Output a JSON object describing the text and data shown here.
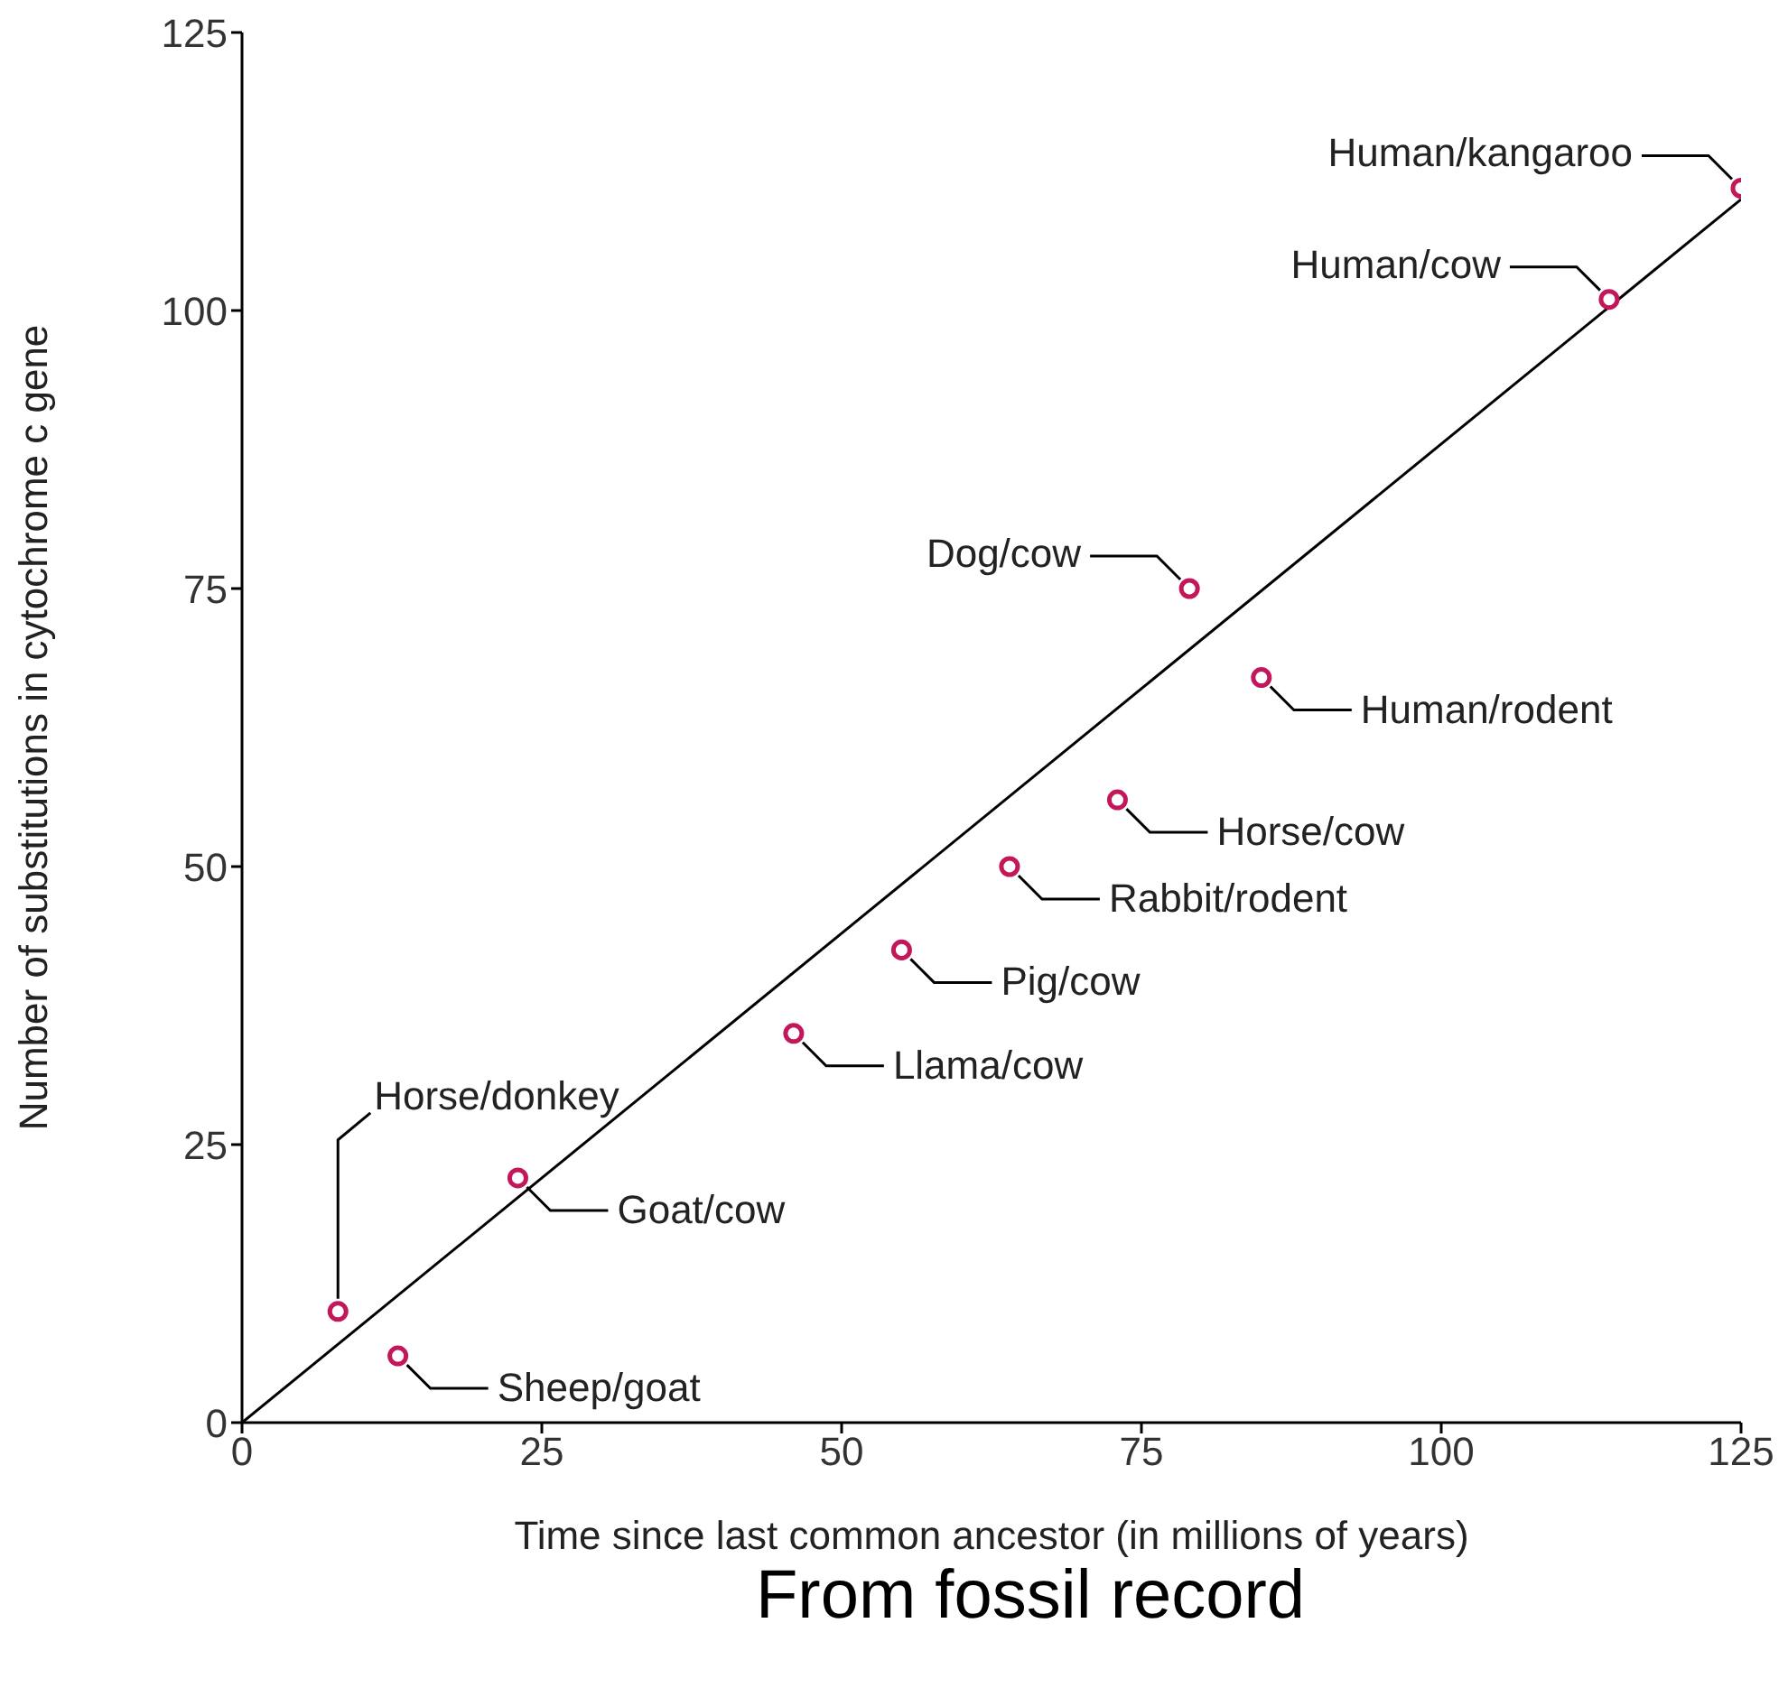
{
  "chart_data": {
    "type": "scatter",
    "xlabel": "Time since last common ancestor (in millions of years)",
    "ylabel": "Number of substitutions in cytochrome c gene",
    "xlim": [
      0,
      125
    ],
    "ylim": [
      0,
      125
    ],
    "xticks": [
      0,
      25,
      50,
      75,
      100,
      125
    ],
    "yticks": [
      0,
      25,
      50,
      75,
      100,
      125
    ],
    "grid": false,
    "legend": false,
    "series": [
      {
        "type": "line",
        "color": "#000000",
        "marker": "none",
        "x": [
          0,
          125
        ],
        "values": [
          0,
          110
        ]
      },
      {
        "color": "#c2185b",
        "marker": "circle",
        "x": [
          8,
          13,
          23,
          46,
          55,
          64,
          73,
          85,
          79,
          114,
          125
        ],
        "values": [
          10,
          6,
          22,
          35,
          42.5,
          50,
          56,
          67,
          75,
          101,
          111
        ]
      }
    ],
    "annotations": [
      {
        "text": "Horse/donkey",
        "x": 8,
        "y": 10
      },
      {
        "text": "Sheep/goat",
        "x": 13,
        "y": 6
      },
      {
        "text": "Goat/cow",
        "x": 23,
        "y": 22
      },
      {
        "text": "Llama/cow",
        "x": 46,
        "y": 35
      },
      {
        "text": "Pig/cow",
        "x": 55,
        "y": 42.5
      },
      {
        "text": "Rabbit/rodent",
        "x": 64,
        "y": 50
      },
      {
        "text": "Horse/cow",
        "x": 73,
        "y": 56
      },
      {
        "text": "Human/rodent",
        "x": 85,
        "y": 67
      },
      {
        "text": "Dog/cow",
        "x": 79,
        "y": 75
      },
      {
        "text": "Human/cow",
        "x": 114,
        "y": 101
      },
      {
        "text": "Human/kangaroo",
        "x": 125,
        "y": 111
      },
      "From fossil record"
    ]
  }
}
